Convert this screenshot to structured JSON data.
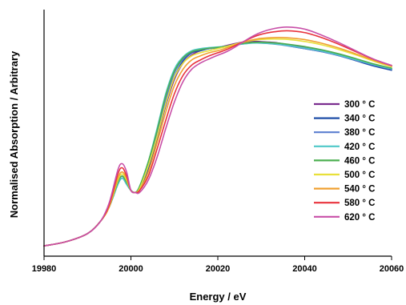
{
  "chart_data": {
    "type": "line",
    "title": "",
    "xlabel": "Energy / eV",
    "ylabel": "Normalised Absorption / Arbitrary",
    "xlim": [
      19980,
      20060
    ],
    "ylim": [
      0,
      1.2
    ],
    "x_ticks": [
      19980,
      20000,
      20020,
      20040,
      20060
    ],
    "x_tick_labels": [
      "19980",
      "20000",
      "20020",
      "20040",
      "20060"
    ],
    "grid": false,
    "legend_position": "right",
    "series": [
      {
        "name": "300 ° C",
        "color": "#7B2D8E",
        "x": [
          19980,
          19985,
          19990,
          19993,
          19995,
          19997,
          19998,
          19999,
          20000,
          20001,
          20002,
          20004,
          20006,
          20008,
          20010,
          20012,
          20014,
          20016,
          20018,
          20020,
          20022,
          20024,
          20026,
          20028,
          20030,
          20033,
          20036,
          20040,
          20044,
          20048,
          20052,
          20056,
          20060
        ],
        "y": [
          0.05,
          0.07,
          0.11,
          0.17,
          0.24,
          0.36,
          0.39,
          0.36,
          0.32,
          0.31,
          0.33,
          0.42,
          0.57,
          0.73,
          0.86,
          0.94,
          0.98,
          1.0,
          1.01,
          1.015,
          1.025,
          1.035,
          1.042,
          1.046,
          1.044,
          1.04,
          1.03,
          1.015,
          1.0,
          0.98,
          0.955,
          0.93,
          0.91
        ]
      },
      {
        "name": "340 ° C",
        "color": "#1F4FA8",
        "x": [
          19980,
          19985,
          19990,
          19993,
          19995,
          19997,
          19998,
          19999,
          20000,
          20001,
          20002,
          20004,
          20006,
          20008,
          20010,
          20012,
          20014,
          20016,
          20018,
          20020,
          20022,
          20024,
          20026,
          20028,
          20030,
          20033,
          20036,
          20040,
          20044,
          20048,
          20052,
          20056,
          20060
        ],
        "y": [
          0.05,
          0.07,
          0.11,
          0.17,
          0.24,
          0.35,
          0.38,
          0.35,
          0.32,
          0.31,
          0.33,
          0.43,
          0.58,
          0.74,
          0.87,
          0.95,
          0.99,
          1.0,
          1.01,
          1.015,
          1.02,
          1.03,
          1.035,
          1.04,
          1.04,
          1.035,
          1.025,
          1.01,
          0.995,
          0.975,
          0.95,
          0.925,
          0.905
        ]
      },
      {
        "name": "380 ° C",
        "color": "#5B7FD0",
        "x": [
          19980,
          19985,
          19990,
          19993,
          19995,
          19997,
          19998,
          19999,
          20000,
          20001,
          20002,
          20004,
          20006,
          20008,
          20010,
          20012,
          20014,
          20016,
          20018,
          20020,
          20022,
          20024,
          20026,
          20028,
          20030,
          20033,
          20036,
          20040,
          20044,
          20048,
          20052,
          20056,
          20060
        ],
        "y": [
          0.05,
          0.07,
          0.11,
          0.17,
          0.24,
          0.35,
          0.38,
          0.35,
          0.32,
          0.31,
          0.33,
          0.44,
          0.6,
          0.76,
          0.89,
          0.96,
          0.995,
          1.005,
          1.01,
          1.015,
          1.02,
          1.028,
          1.033,
          1.038,
          1.037,
          1.032,
          1.024,
          1.01,
          0.995,
          0.975,
          0.952,
          0.93,
          0.91
        ]
      },
      {
        "name": "420 ° C",
        "color": "#4FC8C8",
        "x": [
          19980,
          19985,
          19990,
          19993,
          19995,
          19997,
          19998,
          19999,
          20000,
          20001,
          20002,
          20004,
          20006,
          20008,
          20010,
          20012,
          20014,
          20016,
          20018,
          20020,
          20022,
          20024,
          20026,
          20028,
          20030,
          20033,
          20036,
          20040,
          20044,
          20048,
          20052,
          20056,
          20060
        ],
        "y": [
          0.05,
          0.07,
          0.11,
          0.17,
          0.24,
          0.35,
          0.38,
          0.35,
          0.32,
          0.31,
          0.34,
          0.46,
          0.62,
          0.79,
          0.91,
          0.97,
          1.0,
          1.01,
          1.015,
          1.018,
          1.022,
          1.028,
          1.033,
          1.037,
          1.037,
          1.033,
          1.026,
          1.013,
          0.998,
          0.978,
          0.955,
          0.932,
          0.912
        ]
      },
      {
        "name": "460 ° C",
        "color": "#4CAF50",
        "x": [
          19980,
          19985,
          19990,
          19993,
          19995,
          19997,
          19998,
          19999,
          20000,
          20001,
          20002,
          20004,
          20006,
          20008,
          20010,
          20012,
          20014,
          20016,
          20018,
          20020,
          20022,
          20024,
          20026,
          20028,
          20030,
          20033,
          20036,
          20040,
          20044,
          20048,
          20052,
          20056,
          20060
        ],
        "y": [
          0.05,
          0.07,
          0.11,
          0.17,
          0.24,
          0.36,
          0.39,
          0.36,
          0.32,
          0.31,
          0.34,
          0.46,
          0.61,
          0.78,
          0.9,
          0.965,
          0.995,
          1.005,
          1.012,
          1.016,
          1.022,
          1.03,
          1.036,
          1.04,
          1.041,
          1.038,
          1.032,
          1.02,
          1.004,
          0.984,
          0.96,
          0.935,
          0.915
        ]
      },
      {
        "name": "500 ° C",
        "color": "#E8E03A",
        "x": [
          19980,
          19985,
          19990,
          19993,
          19995,
          19997,
          19998,
          19999,
          20000,
          20001,
          20002,
          20004,
          20006,
          20008,
          20010,
          20012,
          20014,
          20016,
          20018,
          20020,
          20022,
          20024,
          20026,
          20028,
          20030,
          20033,
          20036,
          20040,
          20044,
          20048,
          20052,
          20056,
          20060
        ],
        "y": [
          0.05,
          0.07,
          0.11,
          0.17,
          0.24,
          0.37,
          0.4,
          0.37,
          0.32,
          0.31,
          0.33,
          0.44,
          0.58,
          0.74,
          0.87,
          0.94,
          0.975,
          0.99,
          1.0,
          1.01,
          1.02,
          1.032,
          1.042,
          1.05,
          1.055,
          1.057,
          1.055,
          1.045,
          1.028,
          1.005,
          0.978,
          0.948,
          0.922
        ]
      },
      {
        "name": "540 ° C",
        "color": "#F0A030",
        "x": [
          19980,
          19985,
          19990,
          19993,
          19995,
          19997,
          19998,
          19999,
          20000,
          20001,
          20002,
          20004,
          20006,
          20008,
          20010,
          20012,
          20014,
          20016,
          20018,
          20020,
          20022,
          20024,
          20026,
          20028,
          20030,
          20033,
          20036,
          20040,
          20044,
          20048,
          20052,
          20056,
          20060
        ],
        "y": [
          0.05,
          0.07,
          0.11,
          0.17,
          0.24,
          0.38,
          0.41,
          0.38,
          0.32,
          0.31,
          0.32,
          0.41,
          0.55,
          0.7,
          0.83,
          0.91,
          0.955,
          0.975,
          0.99,
          1.0,
          1.013,
          1.028,
          1.042,
          1.053,
          1.06,
          1.064,
          1.063,
          1.054,
          1.036,
          1.012,
          0.983,
          0.952,
          0.925
        ]
      },
      {
        "name": "580 ° C",
        "color": "#E8323C",
        "x": [
          19980,
          19985,
          19990,
          19993,
          19995,
          19997,
          19998,
          19999,
          20000,
          20001,
          20002,
          20004,
          20006,
          20008,
          20010,
          20012,
          20014,
          20016,
          20018,
          20020,
          20022,
          20024,
          20026,
          20028,
          20030,
          20033,
          20036,
          20040,
          20044,
          20048,
          20052,
          20056,
          20060
        ],
        "y": [
          0.05,
          0.07,
          0.11,
          0.17,
          0.25,
          0.4,
          0.43,
          0.39,
          0.32,
          0.31,
          0.32,
          0.39,
          0.52,
          0.66,
          0.79,
          0.88,
          0.93,
          0.955,
          0.975,
          0.99,
          1.005,
          1.025,
          1.045,
          1.065,
          1.08,
          1.092,
          1.097,
          1.088,
          1.063,
          1.03,
          0.993,
          0.957,
          0.928
        ]
      },
      {
        "name": "620 ° C",
        "color": "#C84FA8",
        "x": [
          19980,
          19985,
          19990,
          19993,
          19995,
          19997,
          19998,
          19999,
          20000,
          20001,
          20002,
          20004,
          20006,
          20008,
          20010,
          20012,
          20014,
          20016,
          20018,
          20020,
          20022,
          20024,
          20026,
          20028,
          20030,
          20033,
          20036,
          20040,
          20044,
          20048,
          20052,
          20056,
          20060
        ],
        "y": [
          0.05,
          0.07,
          0.11,
          0.17,
          0.26,
          0.42,
          0.45,
          0.41,
          0.32,
          0.31,
          0.31,
          0.37,
          0.48,
          0.62,
          0.75,
          0.85,
          0.91,
          0.94,
          0.96,
          0.978,
          0.995,
          1.018,
          1.045,
          1.07,
          1.09,
          1.108,
          1.115,
          1.105,
          1.075,
          1.038,
          0.997,
          0.958,
          0.928
        ]
      }
    ]
  }
}
